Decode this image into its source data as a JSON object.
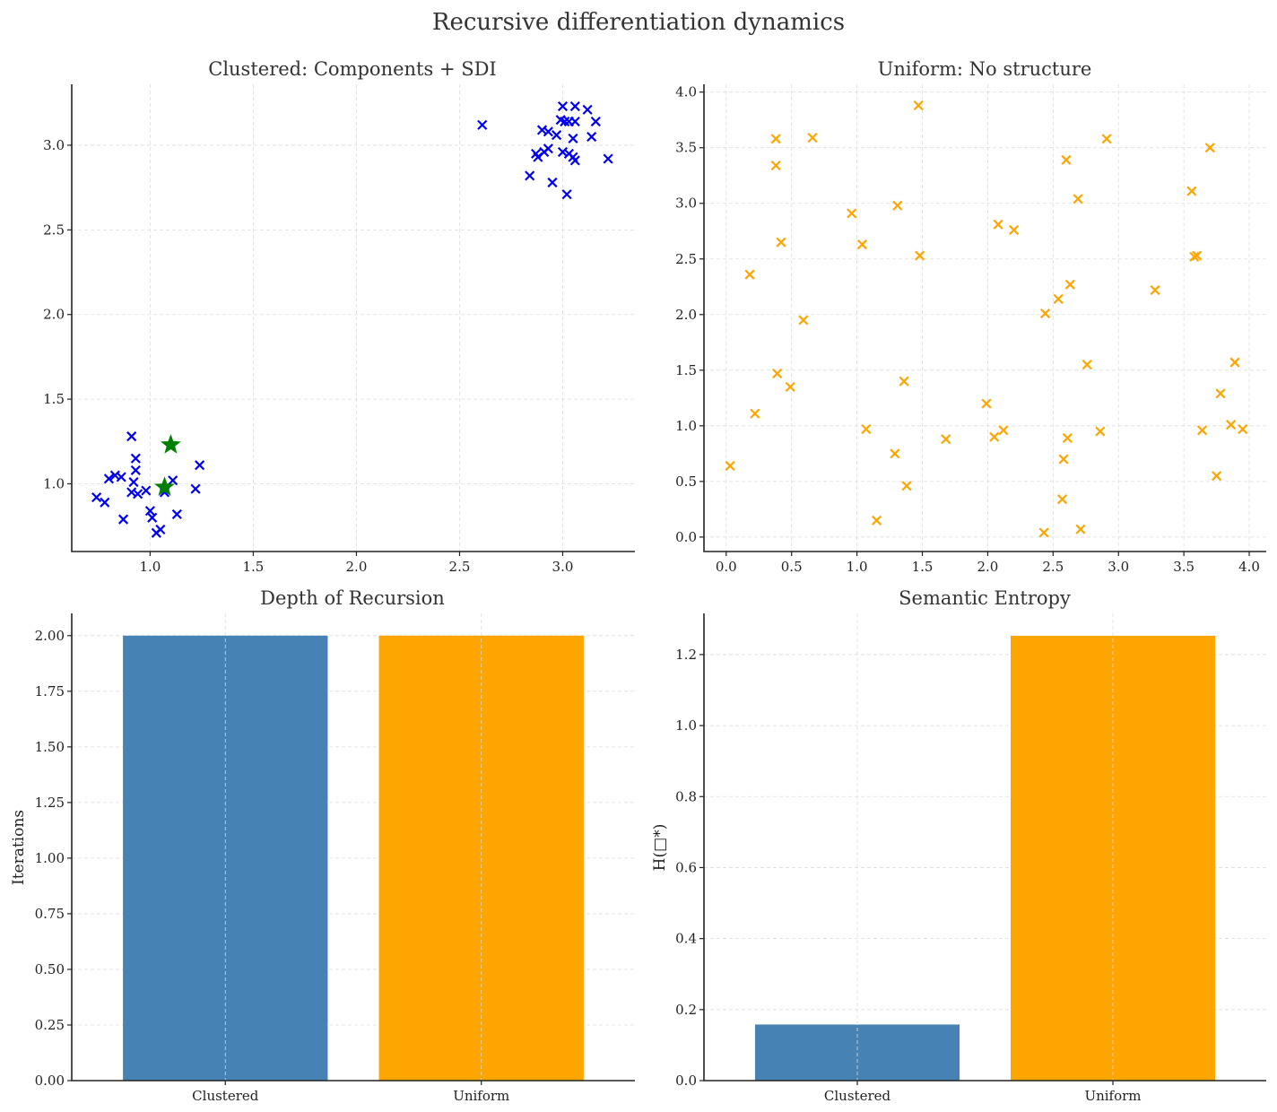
{
  "figure": {
    "title": "Recursive differentiation dynamics"
  },
  "chart_data": [
    {
      "type": "scatter",
      "title": "Clustered: Components + SDI",
      "xlabel": "",
      "ylabel": "",
      "xlim": [
        0.62,
        3.35
      ],
      "ylim": [
        0.6,
        3.36
      ],
      "xticks": [
        1.0,
        1.5,
        2.0,
        2.5,
        3.0
      ],
      "yticks": [
        1.0,
        1.5,
        2.0,
        2.5,
        3.0
      ],
      "grid": true,
      "series": [
        {
          "marker": "x",
          "color": "#0000ee",
          "points": [
            [
              0.74,
              0.92
            ],
            [
              0.78,
              0.89
            ],
            [
              0.8,
              1.03
            ],
            [
              0.83,
              1.05
            ],
            [
              0.86,
              1.04
            ],
            [
              0.87,
              0.79
            ],
            [
              0.91,
              1.28
            ],
            [
              0.91,
              0.95
            ],
            [
              0.92,
              1.01
            ],
            [
              0.93,
              1.08
            ],
            [
              0.93,
              1.15
            ],
            [
              0.94,
              0.94
            ],
            [
              0.98,
              0.96
            ],
            [
              1.0,
              0.84
            ],
            [
              1.01,
              0.8
            ],
            [
              1.03,
              0.71
            ],
            [
              1.05,
              0.73
            ],
            [
              1.07,
              0.95
            ],
            [
              1.11,
              1.02
            ],
            [
              1.13,
              0.82
            ],
            [
              1.22,
              0.97
            ],
            [
              1.24,
              1.11
            ],
            [
              2.61,
              3.12
            ],
            [
              2.84,
              2.82
            ],
            [
              2.87,
              2.95
            ],
            [
              2.88,
              2.93
            ],
            [
              2.9,
              3.09
            ],
            [
              2.91,
              2.96
            ],
            [
              2.93,
              3.08
            ],
            [
              2.93,
              2.98
            ],
            [
              2.95,
              2.78
            ],
            [
              2.97,
              3.06
            ],
            [
              2.99,
              3.15
            ],
            [
              3.0,
              3.23
            ],
            [
              3.0,
              2.96
            ],
            [
              3.01,
              3.14
            ],
            [
              3.02,
              2.71
            ],
            [
              3.03,
              2.95
            ],
            [
              3.03,
              3.14
            ],
            [
              3.05,
              3.04
            ],
            [
              3.05,
              2.93
            ],
            [
              3.06,
              3.23
            ],
            [
              3.06,
              3.14
            ],
            [
              3.06,
              2.91
            ],
            [
              3.12,
              3.21
            ],
            [
              3.14,
              3.05
            ],
            [
              3.16,
              3.14
            ],
            [
              3.22,
              2.92
            ]
          ]
        },
        {
          "marker": "star",
          "color": "#008000",
          "points": [
            [
              1.1,
              1.23
            ],
            [
              1.07,
              0.98
            ]
          ]
        }
      ]
    },
    {
      "type": "scatter",
      "title": "Uniform: No structure",
      "xlabel": "",
      "ylabel": "",
      "xlim": [
        -0.17,
        4.13
      ],
      "ylim": [
        -0.13,
        4.07
      ],
      "xticks": [
        0.0,
        0.5,
        1.0,
        1.5,
        2.0,
        2.5,
        3.0,
        3.5,
        4.0
      ],
      "yticks": [
        0.0,
        0.5,
        1.0,
        1.5,
        2.0,
        2.5,
        3.0,
        3.5,
        4.0
      ],
      "grid": true,
      "series": [
        {
          "marker": "x",
          "color": "#ffa500",
          "points": [
            [
              0.03,
              0.64
            ],
            [
              0.18,
              2.36
            ],
            [
              0.22,
              1.11
            ],
            [
              0.38,
              3.58
            ],
            [
              0.38,
              3.34
            ],
            [
              0.39,
              1.47
            ],
            [
              0.42,
              2.65
            ],
            [
              0.49,
              1.35
            ],
            [
              0.59,
              1.95
            ],
            [
              0.66,
              3.59
            ],
            [
              0.96,
              2.91
            ],
            [
              1.04,
              2.63
            ],
            [
              1.07,
              0.97
            ],
            [
              1.15,
              0.15
            ],
            [
              1.29,
              0.75
            ],
            [
              1.31,
              2.98
            ],
            [
              1.36,
              1.4
            ],
            [
              1.38,
              0.46
            ],
            [
              1.47,
              3.88
            ],
            [
              1.48,
              2.53
            ],
            [
              1.68,
              0.88
            ],
            [
              1.99,
              1.2
            ],
            [
              2.05,
              0.9
            ],
            [
              2.08,
              2.81
            ],
            [
              2.12,
              0.96
            ],
            [
              2.2,
              2.76
            ],
            [
              2.43,
              0.04
            ],
            [
              2.44,
              2.01
            ],
            [
              2.54,
              2.14
            ],
            [
              2.57,
              0.34
            ],
            [
              2.58,
              0.7
            ],
            [
              2.6,
              3.39
            ],
            [
              2.61,
              0.89
            ],
            [
              2.63,
              2.27
            ],
            [
              2.69,
              3.04
            ],
            [
              2.71,
              0.07
            ],
            [
              2.76,
              1.55
            ],
            [
              2.86,
              0.95
            ],
            [
              2.91,
              3.58
            ],
            [
              3.28,
              2.22
            ],
            [
              3.56,
              3.11
            ],
            [
              3.58,
              2.52
            ],
            [
              3.6,
              2.53
            ],
            [
              3.64,
              0.96
            ],
            [
              3.7,
              3.5
            ],
            [
              3.75,
              0.55
            ],
            [
              3.78,
              1.29
            ],
            [
              3.86,
              1.01
            ],
            [
              3.89,
              1.57
            ],
            [
              3.95,
              0.97
            ]
          ]
        }
      ]
    },
    {
      "type": "bar",
      "title": "Depth of Recursion",
      "xlabel": "",
      "ylabel": "Iterations",
      "categories": [
        "Clustered",
        "Uniform"
      ],
      "values": [
        2,
        2
      ],
      "colors": [
        "#4682b4",
        "#ffa500"
      ],
      "ylim": [
        0,
        2.1
      ],
      "yticks": [
        "0.00",
        "0.25",
        "0.50",
        "0.75",
        "1.00",
        "1.25",
        "1.50",
        "1.75",
        "2.00"
      ],
      "grid": true
    },
    {
      "type": "bar",
      "title": "Semantic Entropy",
      "xlabel": "",
      "ylabel": "H(□*)",
      "categories": [
        "Clustered",
        "Uniform"
      ],
      "values": [
        0.158,
        1.253
      ],
      "colors": [
        "#4682b4",
        "#ffa500"
      ],
      "ylim": [
        0,
        1.316
      ],
      "yticks": [
        "0.0",
        "0.2",
        "0.4",
        "0.6",
        "0.8",
        "1.0",
        "1.2"
      ],
      "grid": true
    }
  ]
}
